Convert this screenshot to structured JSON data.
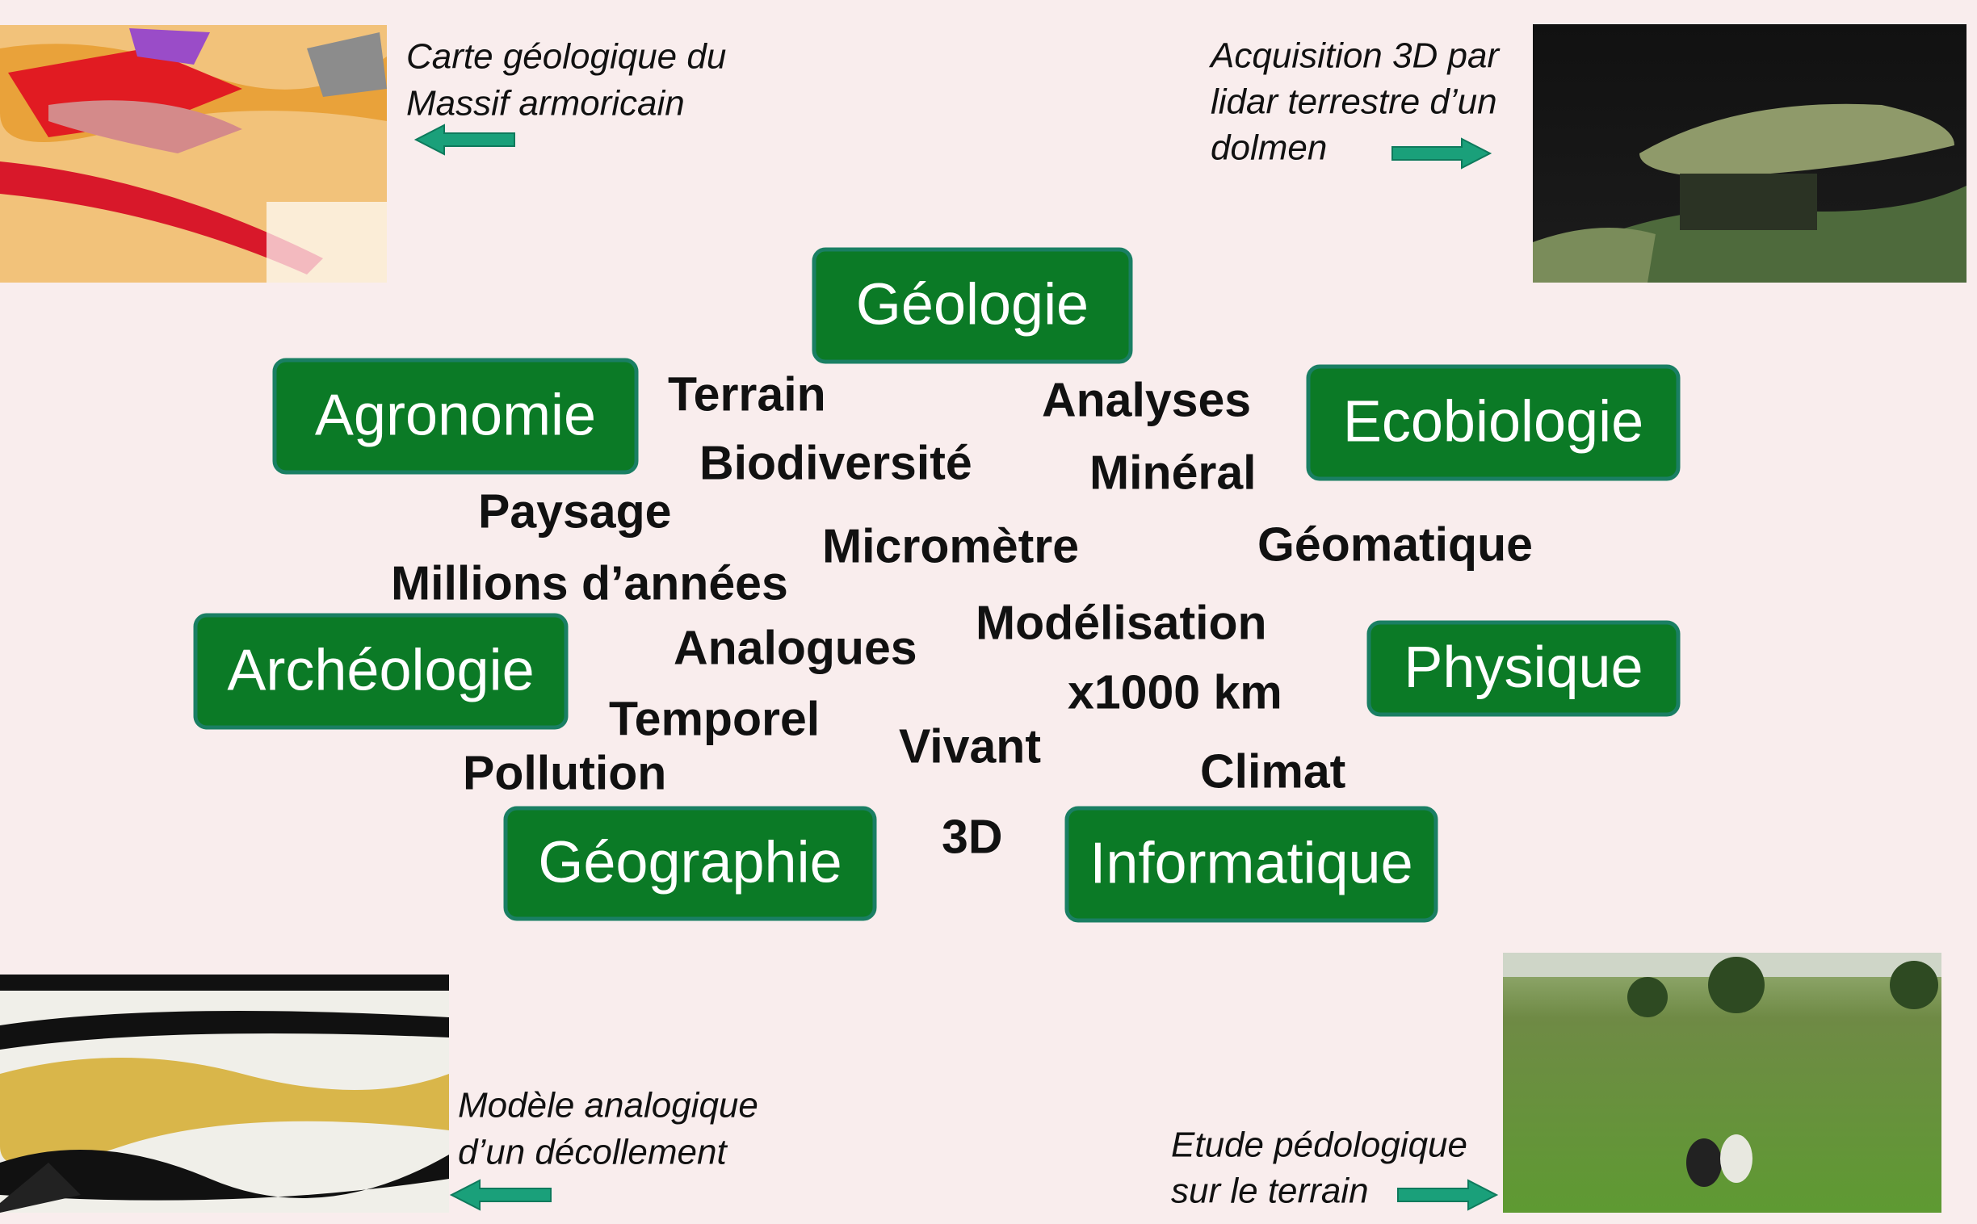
{
  "captions": [
    {
      "lines": [
        "Carte géologique du",
        "Massif armoricain"
      ]
    },
    {
      "lines": [
        "Acquisition 3D par",
        "lidar terrestre d’un",
        "dolmen"
      ]
    },
    {
      "lines": [
        "Modèle analogique",
        "d’un décollement"
      ]
    },
    {
      "lines": [
        "Etude pédologique",
        "sur le terrain"
      ]
    }
  ],
  "disciplines": [
    "Géologie",
    "Agronomie",
    "Ecobiologie",
    "Archéologie",
    "Physique",
    "Géographie",
    "Informatique"
  ],
  "keywords": [
    "Terrain",
    "Analyses",
    "Biodiversité",
    "Minéral",
    "Paysage",
    "Micromètre",
    "Géomatique",
    "Millions d’années",
    "Modélisation",
    "Analogues",
    "x1000 km",
    "Temporel",
    "Vivant",
    "Pollution",
    "Climat",
    "3D"
  ]
}
